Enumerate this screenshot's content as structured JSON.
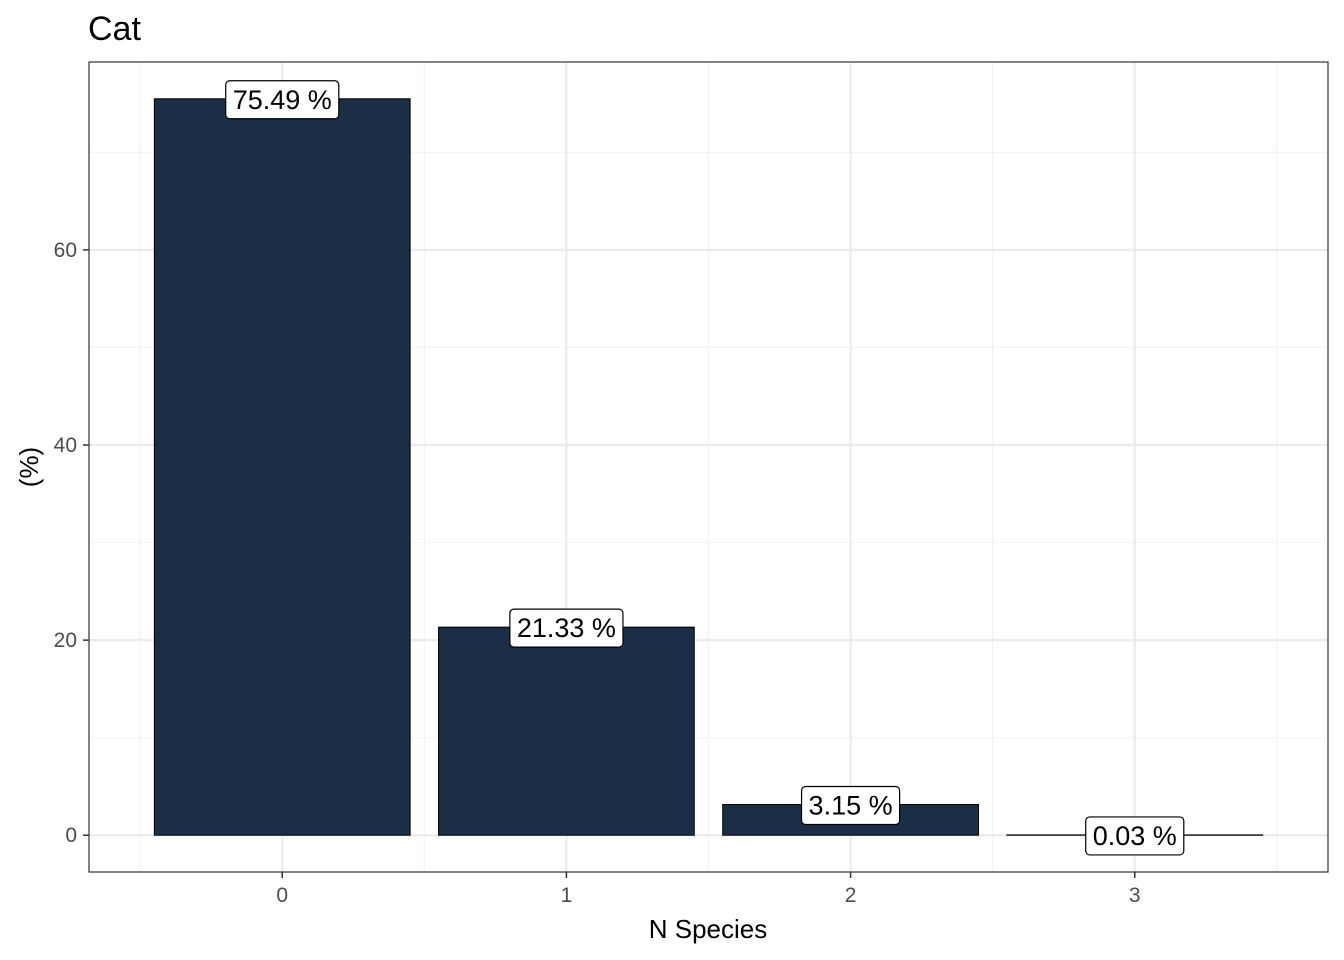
{
  "chart_data": {
    "type": "bar",
    "title": "Cat",
    "xlabel": "N Species",
    "ylabel": "(%)",
    "categories": [
      "0",
      "1",
      "2",
      "3"
    ],
    "values": [
      75.49,
      21.33,
      3.15,
      0.03
    ],
    "data_labels": [
      "75.49 %",
      "21.33 %",
      "3.15 %",
      "0.03 %"
    ],
    "y_ticks": [
      0,
      20,
      40,
      60
    ],
    "y_tick_labels": [
      "0",
      "20",
      "40",
      "60"
    ],
    "ylim": [
      -3.77,
      79.26
    ],
    "xlim": [
      -0.5,
      3.5
    ],
    "grid": true,
    "legend": "none",
    "colors": {
      "bar_fill": "#1b2e46",
      "panel_border": "#333333",
      "grid_major": "#ebebeb",
      "grid_minor": "#f2f2f2",
      "label_box_border": "#000000",
      "label_box_fill": "#ffffff"
    }
  }
}
